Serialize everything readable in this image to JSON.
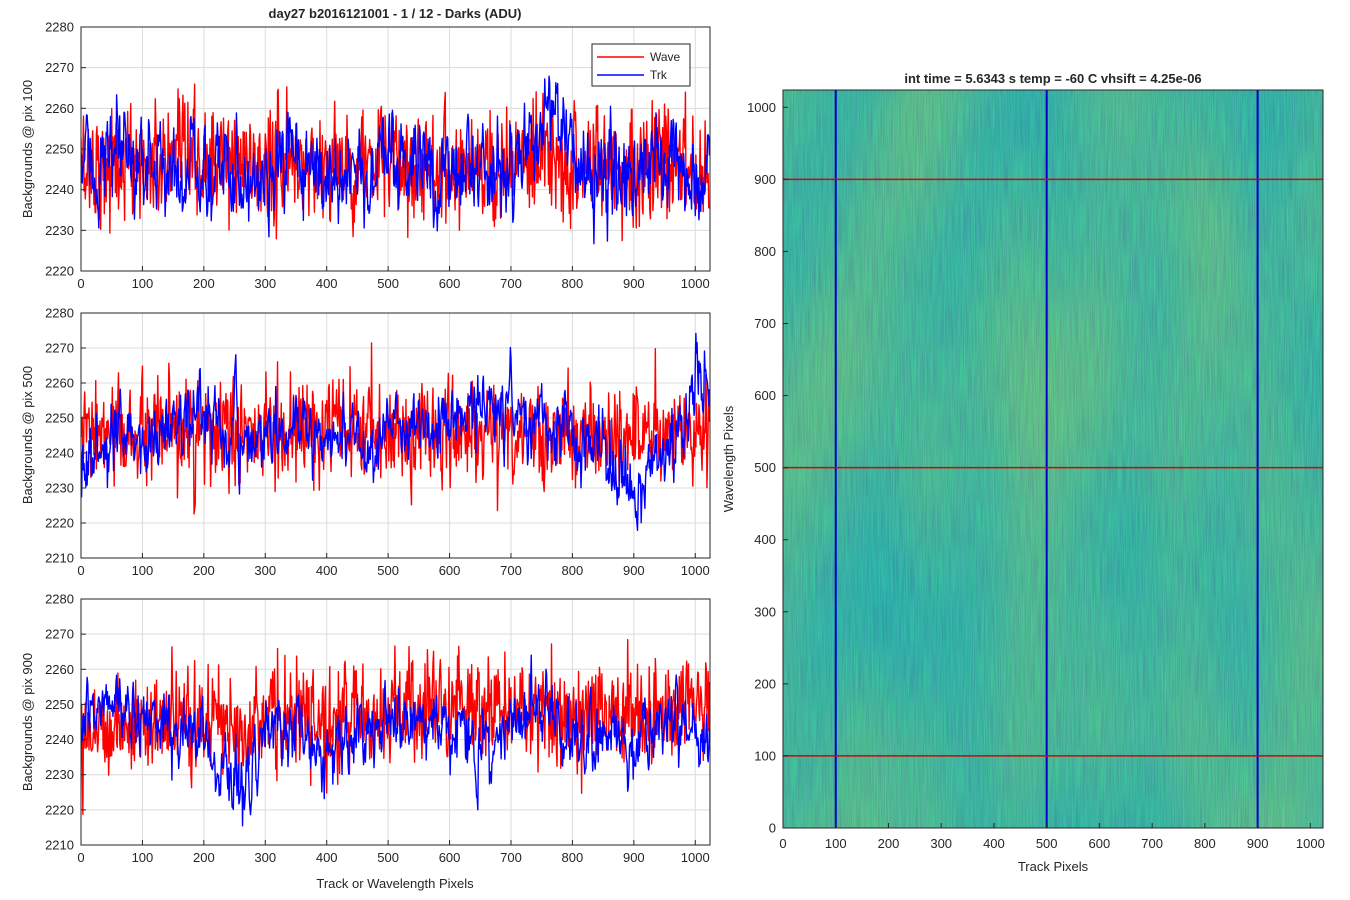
{
  "chart_data": [
    {
      "type": "line",
      "title": "day27 b2016121001 - 1 / 12 - Darks (ADU)",
      "xlabel": "",
      "ylabel": "Backgrounds @ pix 100",
      "xlim": [
        0,
        1024
      ],
      "ylim": [
        2220,
        2280
      ],
      "yticks": [
        2220,
        2230,
        2240,
        2250,
        2260,
        2270,
        2280
      ],
      "xticks": [
        0,
        100,
        200,
        300,
        400,
        500,
        600,
        700,
        800,
        900,
        1000
      ],
      "grid": true,
      "legend": "top-right",
      "series": [
        {
          "name": "Wave",
          "color": "#ff0000",
          "mean": 2246,
          "noise": 7,
          "x": [
            0,
            100,
            200,
            300,
            400,
            500,
            600,
            700,
            800,
            900,
            1023
          ],
          "y": [
            2246,
            2246,
            2246,
            2246,
            2246,
            2246,
            2246,
            2246,
            2246,
            2246,
            2246
          ]
        },
        {
          "name": "Trk",
          "color": "#0000ff",
          "mean": 2245,
          "noise": 6,
          "x": [
            0,
            100,
            200,
            300,
            400,
            500,
            600,
            700,
            740,
            770,
            790,
            800,
            900,
            1023
          ],
          "y": [
            2246,
            2247,
            2244,
            2245,
            2244,
            2244,
            2246,
            2245,
            2252,
            2263,
            2253,
            2246,
            2244,
            2244
          ]
        }
      ]
    },
    {
      "type": "line",
      "title": "",
      "xlabel": "",
      "ylabel": "Backgrounds @ pix 500",
      "xlim": [
        0,
        1024
      ],
      "ylim": [
        2210,
        2280
      ],
      "yticks": [
        2210,
        2220,
        2230,
        2240,
        2250,
        2260,
        2270,
        2280
      ],
      "xticks": [
        0,
        100,
        200,
        300,
        400,
        500,
        600,
        700,
        800,
        900,
        1000
      ],
      "grid": true,
      "series": [
        {
          "name": "Wave",
          "color": "#ff0000",
          "mean": 2245,
          "noise": 7,
          "x": [
            0,
            100,
            200,
            300,
            400,
            500,
            600,
            700,
            800,
            900,
            1023
          ],
          "y": [
            2245,
            2245,
            2245,
            2245,
            2246,
            2246,
            2246,
            2246,
            2245,
            2245,
            2246
          ]
        },
        {
          "name": "Trk",
          "color": "#0000ff",
          "mean": 2245,
          "noise": 5,
          "x": [
            0,
            50,
            100,
            150,
            200,
            250,
            300,
            400,
            500,
            600,
            650,
            700,
            750,
            800,
            850,
            900,
            950,
            1000,
            1023
          ],
          "y": [
            2236,
            2242,
            2243,
            2248,
            2252,
            2243,
            2245,
            2246,
            2244,
            2250,
            2253,
            2254,
            2246,
            2244,
            2240,
            2230,
            2240,
            2258,
            2256
          ]
        }
      ]
    },
    {
      "type": "line",
      "title": "",
      "xlabel": "Track or Wavelength Pixels",
      "ylabel": "Backgrounds @ pix 900",
      "xlim": [
        0,
        1024
      ],
      "ylim": [
        2210,
        2280
      ],
      "yticks": [
        2210,
        2220,
        2230,
        2240,
        2250,
        2260,
        2270,
        2280
      ],
      "xticks": [
        0,
        100,
        200,
        300,
        400,
        500,
        600,
        700,
        800,
        900,
        1000
      ],
      "grid": true,
      "series": [
        {
          "name": "Wave",
          "color": "#ff0000",
          "mean": 2246,
          "noise": 7,
          "x": [
            0,
            100,
            200,
            300,
            400,
            500,
            600,
            700,
            800,
            900,
            1023
          ],
          "y": [
            2244,
            2244,
            2245,
            2246,
            2245,
            2248,
            2250,
            2249,
            2248,
            2247,
            2250
          ]
        },
        {
          "name": "Trk",
          "color": "#0000ff",
          "mean": 2244,
          "noise": 5,
          "x": [
            0,
            40,
            100,
            200,
            260,
            300,
            350,
            400,
            450,
            500,
            550,
            600,
            650,
            700,
            750,
            800,
            850,
            900,
            950,
            1000,
            1023
          ],
          "y": [
            2240,
            2252,
            2246,
            2240,
            2226,
            2240,
            2246,
            2236,
            2238,
            2246,
            2246,
            2244,
            2236,
            2246,
            2250,
            2240,
            2244,
            2236,
            2246,
            2240,
            2238
          ]
        }
      ]
    },
    {
      "type": "heatmap",
      "title": "int time = 5.6343 s    temp = -60 C    vhsift = 4.25e-06",
      "xlabel": "Track Pixels",
      "ylabel": "Wavelength Pixels",
      "xlim": [
        0,
        1024
      ],
      "ylim": [
        0,
        1024
      ],
      "xticks": [
        0,
        100,
        200,
        300,
        400,
        500,
        600,
        700,
        800,
        900,
        1000
      ],
      "yticks": [
        0,
        100,
        200,
        300,
        400,
        500,
        600,
        700,
        800,
        900,
        1000
      ],
      "colormap": [
        "#2c8ec4",
        "#26a8b8",
        "#2fb7a0",
        "#6cc07a",
        "#9ec45c"
      ],
      "marker_lines": [
        {
          "orientation": "vertical",
          "at": 100,
          "color": "#0000c8"
        },
        {
          "orientation": "vertical",
          "at": 500,
          "color": "#0000c8"
        },
        {
          "orientation": "vertical",
          "at": 900,
          "color": "#0000c8"
        },
        {
          "orientation": "horizontal",
          "at": 100,
          "color": "#e00000"
        },
        {
          "orientation": "horizontal",
          "at": 500,
          "color": "#e00000"
        },
        {
          "orientation": "horizontal",
          "at": 900,
          "color": "#e00000"
        }
      ]
    }
  ]
}
